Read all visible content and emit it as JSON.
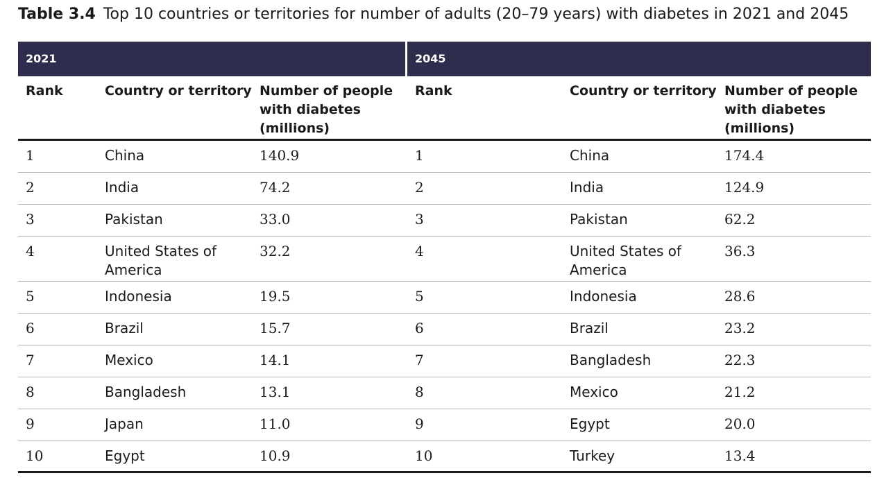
{
  "caption": {
    "label": "Table 3.4",
    "text": "Top 10 countries or territories for number of adults (20–79 years) with diabetes in 2021 and 2045"
  },
  "table": {
    "years": [
      "2021",
      "2045"
    ],
    "headers": [
      "Rank",
      "Country or territory",
      "Number of people with diabetes (millions)",
      "Rank",
      "Country or territory",
      "Number of people with diabetes (millions)"
    ],
    "rows": [
      [
        "1",
        "China",
        "140.9",
        "1",
        "China",
        "174.4"
      ],
      [
        "2",
        "India",
        "74.2",
        "2",
        "India",
        "124.9"
      ],
      [
        "3",
        "Pakistan",
        "33.0",
        "3",
        "Pakistan",
        "62.2"
      ],
      [
        "4",
        "United States of America",
        "32.2",
        "4",
        "United States of America",
        "36.3"
      ],
      [
        "5",
        "Indonesia",
        "19.5",
        "5",
        "Indonesia",
        "28.6"
      ],
      [
        "6",
        "Brazil",
        "15.7",
        "6",
        "Brazil",
        "23.2"
      ],
      [
        "7",
        "Mexico",
        "14.1",
        "7",
        "Bangladesh",
        "22.3"
      ],
      [
        "8",
        "Bangladesh",
        "13.1",
        "8",
        "Mexico",
        "21.2"
      ],
      [
        "9",
        "Japan",
        "11.0",
        "9",
        "Egypt",
        "20.0"
      ],
      [
        "10",
        "Egypt",
        "10.9",
        "10",
        "Turkey",
        "13.4"
      ]
    ]
  }
}
